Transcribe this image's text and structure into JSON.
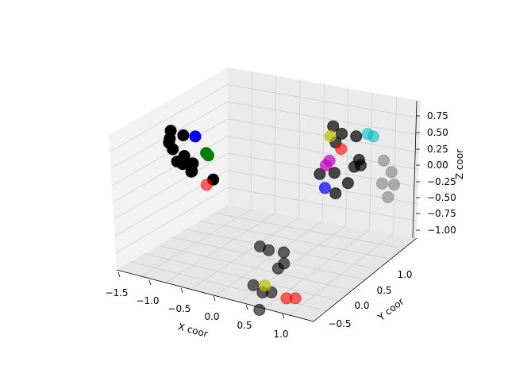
{
  "chart_data": {
    "type": "scatter",
    "projection": "3d",
    "title": "",
    "xlabel": "X coor",
    "ylabel": "Y coor",
    "zlabel": "Z coor",
    "xlim": [
      -1.5,
      1.2
    ],
    "ylim": [
      -0.8,
      1.4
    ],
    "zlim": [
      -1.2,
      0.9
    ],
    "x_ticks": [
      "−1.5",
      "−1.0",
      "−0.5",
      "0.0",
      "0.5",
      "1.0"
    ],
    "y_ticks": [
      "−0.5",
      "0.0",
      "0.5",
      "1.0"
    ],
    "z_ticks": [
      "0.75",
      "0.50",
      "0.25",
      "0.00",
      "−0.25",
      "−0.50",
      "−0.75",
      "−1.00"
    ],
    "grid": true,
    "legend": "none",
    "colors": {
      "black": "#000000",
      "blue": "#0000ff",
      "green": "#008000",
      "red": "#ff0000",
      "yellow": "#bfbf00",
      "cyan": "#00bfbf",
      "magenta": "#bf00bf",
      "gray": "#808080",
      "pane": "#f2f2f2",
      "grid": "#cccccc"
    },
    "points": [
      {
        "x": -1.2,
        "y": -0.6,
        "z": 0.45,
        "color": "black",
        "alpha": 1.0
      },
      {
        "x": -1.25,
        "y": -0.55,
        "z": 0.3,
        "color": "black",
        "alpha": 1.0
      },
      {
        "x": -1.3,
        "y": -0.5,
        "z": 0.2,
        "color": "black",
        "alpha": 1.0
      },
      {
        "x": -1.22,
        "y": -0.52,
        "z": 0.15,
        "color": "black",
        "alpha": 1.0
      },
      {
        "x": -1.0,
        "y": -0.6,
        "z": 0.45,
        "color": "black",
        "alpha": 1.0
      },
      {
        "x": -1.05,
        "y": -0.5,
        "z": 0.1,
        "color": "black",
        "alpha": 1.0
      },
      {
        "x": -0.95,
        "y": -0.45,
        "z": 0.0,
        "color": "black",
        "alpha": 1.0
      },
      {
        "x": -1.2,
        "y": -0.45,
        "z": -0.05,
        "color": "black",
        "alpha": 1.0
      },
      {
        "x": -1.15,
        "y": -0.4,
        "z": -0.1,
        "color": "black",
        "alpha": 1.0
      },
      {
        "x": -1.0,
        "y": -0.4,
        "z": -0.15,
        "color": "black",
        "alpha": 1.0
      },
      {
        "x": -1.05,
        "y": -0.35,
        "z": -0.2,
        "color": "black",
        "alpha": 1.0
      },
      {
        "x": -0.7,
        "y": -0.35,
        "z": -0.2,
        "color": "black",
        "alpha": 1.0
      },
      {
        "x": -0.85,
        "y": -0.55,
        "z": 0.45,
        "color": "blue",
        "alpha": 1.0
      },
      {
        "x": -0.75,
        "y": -0.45,
        "z": 0.2,
        "color": "green",
        "alpha": 1.0
      },
      {
        "x": -0.72,
        "y": -0.44,
        "z": 0.17,
        "color": "green",
        "alpha": 1.0
      },
      {
        "x": -0.8,
        "y": -0.35,
        "z": -0.3,
        "color": "red",
        "alpha": 0.6
      },
      {
        "x": 0.4,
        "y": 0.6,
        "z": 0.25,
        "color": "black",
        "alpha": 0.7
      },
      {
        "x": 0.5,
        "y": 0.65,
        "z": 0.15,
        "color": "black",
        "alpha": 0.7
      },
      {
        "x": 0.45,
        "y": 0.6,
        "z": 0.05,
        "color": "black",
        "alpha": 0.7
      },
      {
        "x": 0.65,
        "y": 0.75,
        "z": 0.1,
        "color": "black",
        "alpha": 0.7
      },
      {
        "x": 0.75,
        "y": 0.7,
        "z": -0.15,
        "color": "black",
        "alpha": 0.7
      },
      {
        "x": 0.7,
        "y": 0.8,
        "z": -0.3,
        "color": "black",
        "alpha": 0.7
      },
      {
        "x": 0.6,
        "y": 0.8,
        "z": -0.35,
        "color": "black",
        "alpha": 0.7
      },
      {
        "x": 0.45,
        "y": 0.6,
        "z": -0.35,
        "color": "black",
        "alpha": 0.7
      },
      {
        "x": 0.3,
        "y": 0.5,
        "z": -0.35,
        "color": "black",
        "alpha": 0.7
      },
      {
        "x": 0.55,
        "y": 0.75,
        "z": -0.55,
        "color": "black",
        "alpha": 0.7
      },
      {
        "x": 0.4,
        "y": 0.7,
        "z": -0.7,
        "color": "black",
        "alpha": 0.7
      },
      {
        "x": 0.4,
        "y": 0.55,
        "z": 0.15,
        "color": "yellow",
        "alpha": 0.7
      },
      {
        "x": 0.75,
        "y": 0.85,
        "z": 0.1,
        "color": "cyan",
        "alpha": 0.6
      },
      {
        "x": 0.8,
        "y": 0.9,
        "z": 0.05,
        "color": "cyan",
        "alpha": 0.6
      },
      {
        "x": 0.5,
        "y": 0.65,
        "z": -0.05,
        "color": "red",
        "alpha": 0.6
      },
      {
        "x": 0.38,
        "y": 0.58,
        "z": -0.2,
        "color": "magenta",
        "alpha": 0.7
      },
      {
        "x": 0.35,
        "y": 0.55,
        "z": -0.25,
        "color": "magenta",
        "alpha": 0.7
      },
      {
        "x": 0.35,
        "y": 0.55,
        "z": -0.55,
        "color": "blue",
        "alpha": 0.7
      },
      {
        "x": 0.9,
        "y": 1.0,
        "z": -0.3,
        "color": "gray",
        "alpha": 0.6
      },
      {
        "x": 0.95,
        "y": 1.1,
        "z": -0.5,
        "color": "gray",
        "alpha": 0.6
      },
      {
        "x": 0.85,
        "y": 1.05,
        "z": -0.65,
        "color": "gray",
        "alpha": 0.6
      },
      {
        "x": 1.0,
        "y": 1.1,
        "z": -0.65,
        "color": "gray",
        "alpha": 0.6
      },
      {
        "x": 0.95,
        "y": 1.05,
        "z": -0.8,
        "color": "gray",
        "alpha": 0.6
      },
      {
        "x": -0.2,
        "y": 0.0,
        "z": -1.15,
        "color": "black",
        "alpha": 0.6
      },
      {
        "x": -0.1,
        "y": 0.05,
        "z": -1.2,
        "color": "black",
        "alpha": 0.6
      },
      {
        "x": 0.1,
        "y": 0.1,
        "z": -1.2,
        "color": "black",
        "alpha": 0.6
      },
      {
        "x": 0.15,
        "y": 0.05,
        "z": -1.3,
        "color": "black",
        "alpha": 0.6
      },
      {
        "x": 0.1,
        "y": 0.0,
        "z": -1.35,
        "color": "black",
        "alpha": 0.6
      },
      {
        "x": -0.2,
        "y": -0.1,
        "z": -1.6,
        "color": "black",
        "alpha": 0.6
      },
      {
        "x": -0.05,
        "y": -0.1,
        "z": -1.65,
        "color": "black",
        "alpha": 0.6
      },
      {
        "x": 0.05,
        "y": -0.05,
        "z": -1.65,
        "color": "black",
        "alpha": 0.6
      },
      {
        "x": -0.05,
        "y": -0.15,
        "z": -1.85,
        "color": "black",
        "alpha": 0.6
      },
      {
        "x": -0.02,
        "y": -0.1,
        "z": -1.55,
        "color": "yellow",
        "alpha": 0.7
      },
      {
        "x": 0.25,
        "y": 0.0,
        "z": -1.7,
        "color": "red",
        "alpha": 0.6
      },
      {
        "x": 0.35,
        "y": 0.05,
        "z": -1.7,
        "color": "red",
        "alpha": 0.6
      }
    ]
  }
}
